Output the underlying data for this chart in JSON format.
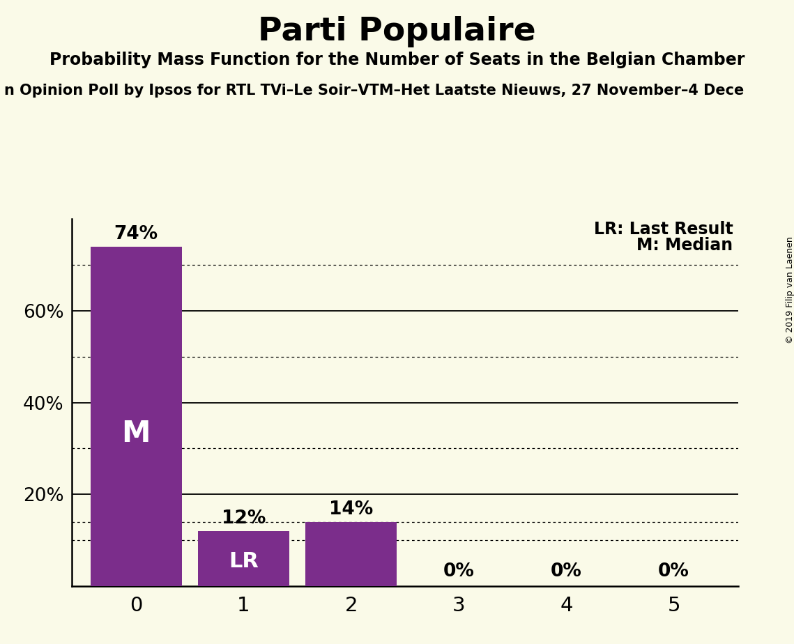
{
  "title": "Parti Populaire",
  "subtitle": "Probability Mass Function for the Number of Seats in the Belgian Chamber",
  "poll_line": "n Opinion Poll by Ipsos for RTL TVi–Le Soir–VTM–Het Laatste Nieuws, 27 November–4 Dece",
  "categories": [
    0,
    1,
    2,
    3,
    4,
    5
  ],
  "values": [
    0.74,
    0.12,
    0.14,
    0.0,
    0.0,
    0.0
  ],
  "bar_color": "#7B2D8B",
  "bar_labels": [
    "74%",
    "12%",
    "14%",
    "0%",
    "0%",
    "0%"
  ],
  "median_bar": 0,
  "lr_bar": 1,
  "median_label": "M",
  "lr_label": "LR",
  "background_color": "#FAFAE8",
  "legend_lr": "LR: Last Result",
  "legend_m": "M: Median",
  "copyright": "© 2019 Filip van Laenen",
  "ylim": [
    0,
    0.8
  ],
  "yticks": [
    0.0,
    0.2,
    0.4,
    0.6
  ],
  "solid_lines": [
    0.2,
    0.4,
    0.6
  ],
  "dotted_lines": [
    0.1,
    0.3,
    0.5,
    0.7
  ],
  "extra_dotted": 0.14
}
